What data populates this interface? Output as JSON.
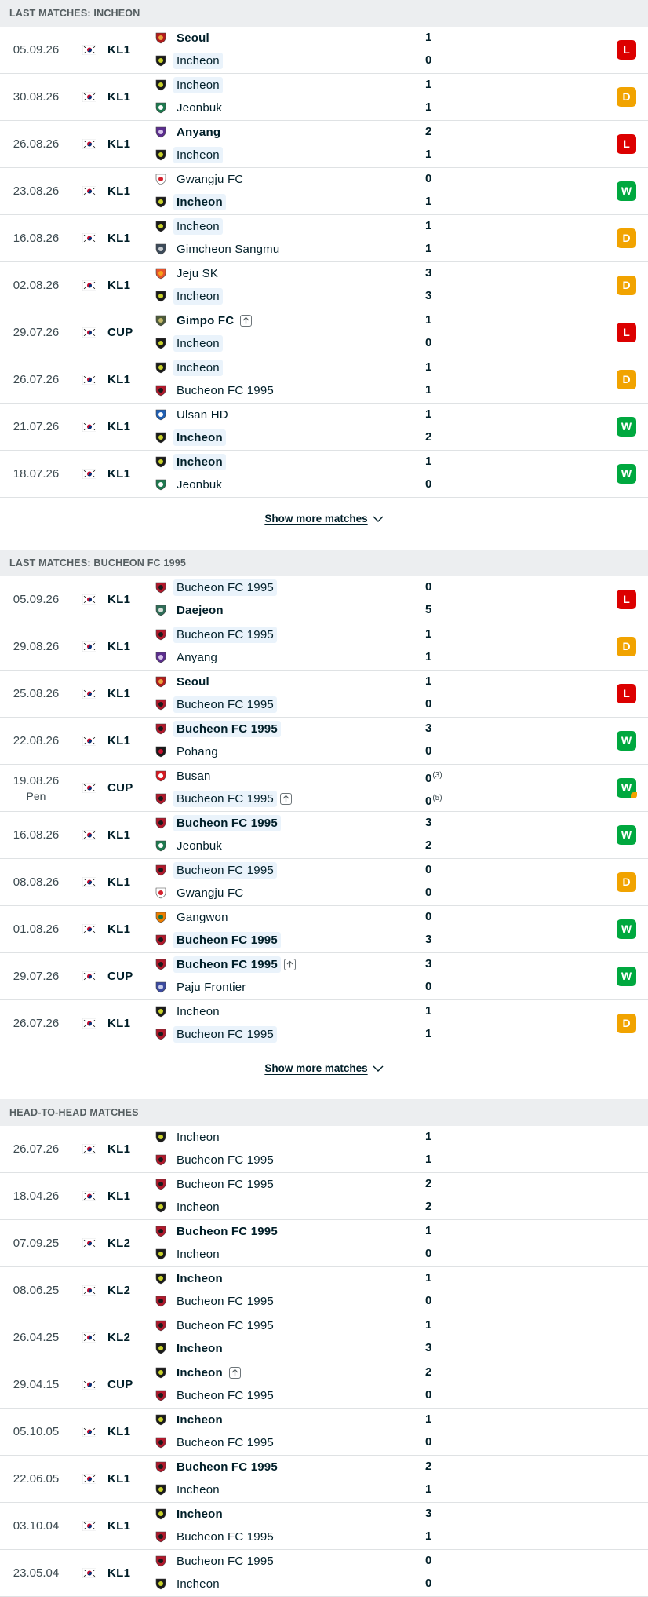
{
  "sections": [
    {
      "id": "incheon",
      "title": "LAST MATCHES: INCHEON",
      "show_more": "Show more matches",
      "matches": [
        {
          "date": "05.09.26",
          "comp": "KL1",
          "home": "Seoul",
          "away": "Incheon",
          "home_crest": "seoul-crest",
          "away_crest": "incheon-crest",
          "home_score": "1",
          "away_score": "0",
          "hl": "away",
          "win": "home",
          "result": "L"
        },
        {
          "date": "30.08.26",
          "comp": "KL1",
          "home": "Incheon",
          "away": "Jeonbuk",
          "home_crest": "incheon-crest",
          "away_crest": "jeonbuk-crest",
          "home_score": "1",
          "away_score": "1",
          "hl": "home",
          "win": "",
          "result": "D"
        },
        {
          "date": "26.08.26",
          "comp": "KL1",
          "home": "Anyang",
          "away": "Incheon",
          "home_crest": "anyang-crest",
          "away_crest": "incheon-crest",
          "home_score": "2",
          "away_score": "1",
          "hl": "away",
          "win": "home",
          "result": "L"
        },
        {
          "date": "23.08.26",
          "comp": "KL1",
          "home": "Gwangju FC",
          "away": "Incheon",
          "home_crest": "gwangju-crest",
          "away_crest": "incheon-crest",
          "home_score": "0",
          "away_score": "1",
          "hl": "away",
          "win": "away",
          "result": "W"
        },
        {
          "date": "16.08.26",
          "comp": "KL1",
          "home": "Incheon",
          "away": "Gimcheon Sangmu",
          "home_crest": "incheon-crest",
          "away_crest": "gimcheon-crest",
          "home_score": "1",
          "away_score": "1",
          "hl": "home",
          "win": "",
          "result": "D"
        },
        {
          "date": "02.08.26",
          "comp": "KL1",
          "home": "Jeju SK",
          "away": "Incheon",
          "home_crest": "jeju-crest",
          "away_crest": "incheon-crest",
          "home_score": "3",
          "away_score": "3",
          "hl": "away",
          "win": "",
          "result": "D"
        },
        {
          "date": "29.07.26",
          "comp": "CUP",
          "home": "Gimpo FC",
          "away": "Incheon",
          "home_crest": "gimpo-crest",
          "away_crest": "incheon-crest",
          "home_score": "1",
          "away_score": "0",
          "hl": "away",
          "win": "home",
          "advance": "home",
          "result": "L"
        },
        {
          "date": "26.07.26",
          "comp": "KL1",
          "home": "Incheon",
          "away": "Bucheon FC 1995",
          "home_crest": "incheon-crest",
          "away_crest": "bucheon-crest",
          "home_score": "1",
          "away_score": "1",
          "hl": "home",
          "win": "",
          "result": "D"
        },
        {
          "date": "21.07.26",
          "comp": "KL1",
          "home": "Ulsan HD",
          "away": "Incheon",
          "home_crest": "ulsan-crest",
          "away_crest": "incheon-crest",
          "home_score": "1",
          "away_score": "2",
          "hl": "away",
          "win": "away",
          "result": "W"
        },
        {
          "date": "18.07.26",
          "comp": "KL1",
          "home": "Incheon",
          "away": "Jeonbuk",
          "home_crest": "incheon-crest",
          "away_crest": "jeonbuk-crest",
          "home_score": "1",
          "away_score": "0",
          "hl": "home",
          "win": "home",
          "result": "W"
        }
      ]
    },
    {
      "id": "bucheon",
      "title": "LAST MATCHES: BUCHEON FC 1995",
      "show_more": "Show more matches",
      "matches": [
        {
          "date": "05.09.26",
          "comp": "KL1",
          "home": "Bucheon FC 1995",
          "away": "Daejeon",
          "home_crest": "bucheon-crest",
          "away_crest": "daejeon-crest",
          "home_score": "0",
          "away_score": "5",
          "hl": "home",
          "win": "away",
          "result": "L"
        },
        {
          "date": "29.08.26",
          "comp": "KL1",
          "home": "Bucheon FC 1995",
          "away": "Anyang",
          "home_crest": "bucheon-crest",
          "away_crest": "anyang-crest",
          "home_score": "1",
          "away_score": "1",
          "hl": "home",
          "win": "",
          "result": "D"
        },
        {
          "date": "25.08.26",
          "comp": "KL1",
          "home": "Seoul",
          "away": "Bucheon FC 1995",
          "home_crest": "seoul-crest",
          "away_crest": "bucheon-crest",
          "home_score": "1",
          "away_score": "0",
          "hl": "away",
          "win": "home",
          "result": "L"
        },
        {
          "date": "22.08.26",
          "comp": "KL1",
          "home": "Bucheon FC 1995",
          "away": "Pohang",
          "home_crest": "bucheon-crest",
          "away_crest": "pohang-crest",
          "home_score": "3",
          "away_score": "0",
          "hl": "home",
          "win": "home",
          "result": "W"
        },
        {
          "date": "19.08.26",
          "date_sub": "Pen",
          "comp": "CUP",
          "home": "Busan",
          "away": "Bucheon FC 1995",
          "home_crest": "busan-crest",
          "away_crest": "bucheon-crest",
          "home_score": "0",
          "away_score": "0",
          "home_pen": "(3)",
          "away_pen": "(5)",
          "hl": "away",
          "win": "",
          "advance": "away",
          "result": "W",
          "pen_dot": true
        },
        {
          "date": "16.08.26",
          "comp": "KL1",
          "home": "Bucheon FC 1995",
          "away": "Jeonbuk",
          "home_crest": "bucheon-crest",
          "away_crest": "jeonbuk-crest",
          "home_score": "3",
          "away_score": "2",
          "hl": "home",
          "win": "home",
          "result": "W"
        },
        {
          "date": "08.08.26",
          "comp": "KL1",
          "home": "Bucheon FC 1995",
          "away": "Gwangju FC",
          "home_crest": "bucheon-crest",
          "away_crest": "gwangju-crest",
          "home_score": "0",
          "away_score": "0",
          "hl": "home",
          "win": "",
          "result": "D"
        },
        {
          "date": "01.08.26",
          "comp": "KL1",
          "home": "Gangwon",
          "away": "Bucheon FC 1995",
          "home_crest": "gangwon-crest",
          "away_crest": "bucheon-crest",
          "home_score": "0",
          "away_score": "3",
          "hl": "away",
          "win": "away",
          "result": "W"
        },
        {
          "date": "29.07.26",
          "comp": "CUP",
          "home": "Bucheon FC 1995",
          "away": "Paju Frontier",
          "home_crest": "bucheon-crest",
          "away_crest": "paju-crest",
          "home_score": "3",
          "away_score": "0",
          "hl": "home",
          "win": "home",
          "advance": "home",
          "result": "W"
        },
        {
          "date": "26.07.26",
          "comp": "KL1",
          "home": "Incheon",
          "away": "Bucheon FC 1995",
          "home_crest": "incheon-crest",
          "away_crest": "bucheon-crest",
          "home_score": "1",
          "away_score": "1",
          "hl": "away",
          "win": "",
          "result": "D"
        }
      ]
    },
    {
      "id": "h2h",
      "title": "HEAD-TO-HEAD MATCHES",
      "matches": [
        {
          "date": "26.07.26",
          "comp": "KL1",
          "home": "Incheon",
          "away": "Bucheon FC 1995",
          "home_crest": "incheon-crest",
          "away_crest": "bucheon-crest",
          "home_score": "1",
          "away_score": "1",
          "hl": "",
          "win": ""
        },
        {
          "date": "18.04.26",
          "comp": "KL1",
          "home": "Bucheon FC 1995",
          "away": "Incheon",
          "home_crest": "bucheon-crest",
          "away_crest": "incheon-crest",
          "home_score": "2",
          "away_score": "2",
          "hl": "",
          "win": ""
        },
        {
          "date": "07.09.25",
          "comp": "KL2",
          "home": "Bucheon FC 1995",
          "away": "Incheon",
          "home_crest": "bucheon-crest",
          "away_crest": "incheon-crest",
          "home_score": "1",
          "away_score": "0",
          "hl": "",
          "win": "home"
        },
        {
          "date": "08.06.25",
          "comp": "KL2",
          "home": "Incheon",
          "away": "Bucheon FC 1995",
          "home_crest": "incheon-crest",
          "away_crest": "bucheon-crest",
          "home_score": "1",
          "away_score": "0",
          "hl": "",
          "win": "home"
        },
        {
          "date": "26.04.25",
          "comp": "KL2",
          "home": "Bucheon FC 1995",
          "away": "Incheon",
          "home_crest": "bucheon-crest",
          "away_crest": "incheon-crest",
          "home_score": "1",
          "away_score": "3",
          "hl": "",
          "win": "away"
        },
        {
          "date": "29.04.15",
          "comp": "CUP",
          "home": "Incheon",
          "away": "Bucheon FC 1995",
          "home_crest": "incheon-crest",
          "away_crest": "bucheon-crest",
          "home_score": "2",
          "away_score": "0",
          "hl": "",
          "win": "home",
          "advance": "home"
        },
        {
          "date": "05.10.05",
          "comp": "KL1",
          "home": "Incheon",
          "away": "Bucheon FC 1995",
          "home_crest": "incheon-crest",
          "away_crest": "bucheon-crest",
          "home_score": "1",
          "away_score": "0",
          "hl": "",
          "win": "home"
        },
        {
          "date": "22.06.05",
          "comp": "KL1",
          "home": "Bucheon FC 1995",
          "away": "Incheon",
          "home_crest": "bucheon-crest",
          "away_crest": "incheon-crest",
          "home_score": "2",
          "away_score": "1",
          "hl": "",
          "win": "home"
        },
        {
          "date": "03.10.04",
          "comp": "KL1",
          "home": "Incheon",
          "away": "Bucheon FC 1995",
          "home_crest": "incheon-crest",
          "away_crest": "bucheon-crest",
          "home_score": "3",
          "away_score": "1",
          "hl": "",
          "win": "home"
        },
        {
          "date": "23.05.04",
          "comp": "KL1",
          "home": "Bucheon FC 1995",
          "away": "Incheon",
          "home_crest": "bucheon-crest",
          "away_crest": "incheon-crest",
          "home_score": "0",
          "away_score": "0",
          "hl": "",
          "win": ""
        }
      ]
    }
  ],
  "colors": {
    "loss": "#dc0000",
    "draw": "#f1a300",
    "win": "#00a83f",
    "header_bg": "#eceef0",
    "highlight_bg": "#eaf3fb"
  },
  "icons": {
    "flag": "south-korea-flag-icon",
    "advance": "arrow-up-icon",
    "show_more": "chevron-down-icon"
  }
}
